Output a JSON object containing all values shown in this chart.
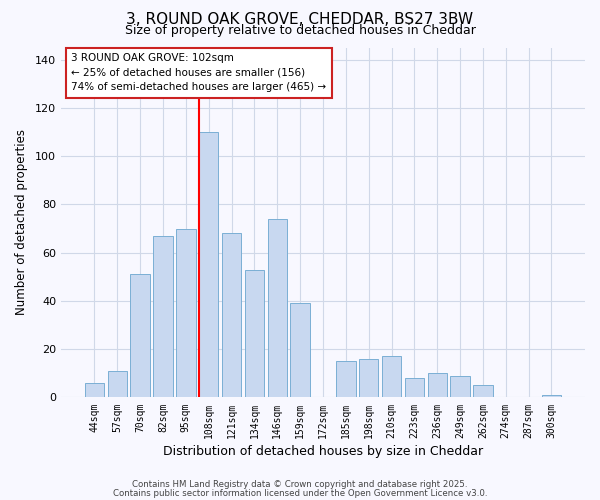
{
  "title": "3, ROUND OAK GROVE, CHEDDAR, BS27 3BW",
  "subtitle": "Size of property relative to detached houses in Cheddar",
  "xlabel": "Distribution of detached houses by size in Cheddar",
  "ylabel": "Number of detached properties",
  "categories": [
    "44sqm",
    "57sqm",
    "70sqm",
    "82sqm",
    "95sqm",
    "108sqm",
    "121sqm",
    "134sqm",
    "146sqm",
    "159sqm",
    "172sqm",
    "185sqm",
    "198sqm",
    "210sqm",
    "223sqm",
    "236sqm",
    "249sqm",
    "262sqm",
    "274sqm",
    "287sqm",
    "300sqm"
  ],
  "bar_values": [
    6,
    11,
    51,
    67,
    70,
    110,
    68,
    53,
    74,
    39,
    0,
    15,
    16,
    17,
    8,
    10,
    9,
    5,
    0,
    0,
    1
  ],
  "bar_color": "#c8d8f0",
  "bar_edge_color": "#7aafd4",
  "red_line_index": 5,
  "annotation_title": "3 ROUND OAK GROVE: 102sqm",
  "annotation_line2": "← 25% of detached houses are smaller (156)",
  "annotation_line3": "74% of semi-detached houses are larger (465) →",
  "ylim": [
    0,
    145
  ],
  "yticks": [
    0,
    20,
    40,
    60,
    80,
    100,
    120,
    140
  ],
  "footer1": "Contains HM Land Registry data © Crown copyright and database right 2025.",
  "footer2": "Contains public sector information licensed under the Open Government Licence v3.0.",
  "bg_color": "#f8f8ff",
  "grid_color": "#d0d8e8"
}
